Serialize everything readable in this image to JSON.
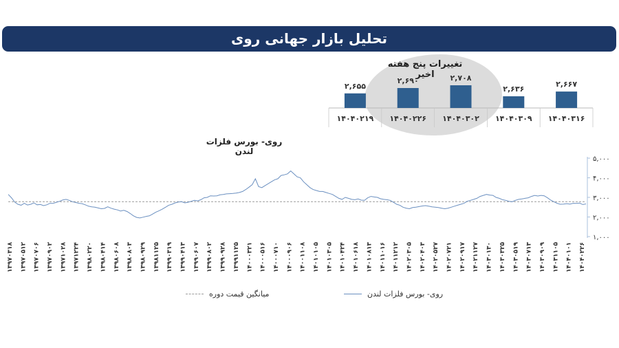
{
  "header": {
    "title": "تحلیل بازار جهانی روی"
  },
  "chart_data": [
    {
      "type": "bar",
      "title": "تغییرات پنج هفته اخیر",
      "categories": [
        "۱۴۰۴۰۲۱۹",
        "۱۴۰۴۰۲۲۶",
        "۱۴۰۴۰۳۰۲",
        "۱۴۰۴۰۳۰۹",
        "۱۴۰۴۰۳۱۶"
      ],
      "values": [
        2655,
        2690,
        2708,
        2636,
        2667
      ],
      "value_labels": [
        "۲,۶۵۵",
        "۲,۶۹۰",
        "۲,۷۰۸",
        "۲,۶۳۶",
        "۲,۶۶۷"
      ],
      "bar_color": "#2f5f8f"
    },
    {
      "type": "line",
      "title": "روی- بورس فلزات لندن",
      "ylim": [
        1000,
        5000
      ],
      "y_ticks": [
        1000,
        2000,
        3000,
        4000,
        5000
      ],
      "y_tick_labels": [
        "۱,۰۰۰",
        "۲,۰۰۰",
        "۳,۰۰۰",
        "۴,۰۰۰",
        "۵,۰۰۰"
      ],
      "x_tick_labels": [
        "۱۳۹۷۰۳۱۸",
        "۱۳۹۷۰۵۱۲",
        "۱۳۹۷۰۷۰۶",
        "۱۳۹۷۰۹۰۲",
        "۱۳۹۷۱۰۲۸",
        "۱۳۹۷۱۲۲۴",
        "۱۳۹۸۰۲۲۰",
        "۱۳۹۸۰۴۱۴",
        "۱۳۹۸۰۶۰۸",
        "۱۳۹۸۰۸۰۳",
        "۱۳۹۸۰۹۲۹",
        "۱۳۹۸۱۱۲۵",
        "۱۳۹۹۰۳۱۹",
        "۱۳۹۹۰۴۱۳",
        "۱۳۹۹۰۶۰۷",
        "۱۳۹۹۰۸۰۲",
        "۱۳۹۹۰۹۲۸",
        "۱۳۹۹۱۱۲۵",
        "۱۴۰۰۰۳۲۱",
        "۱۴۰۰۰۵۱۶",
        "۱۴۰۰۰۷۱۰",
        "۱۴۰۰۰۹۰۶",
        "۱۴۰۰۱۱۰۸",
        "۱۴۰۱۰۱۰۵",
        "۱۴۰۱۰۳۰۵",
        "۱۴۰۱۰۴۲۴",
        "۱۴۰۱۰۶۱۸",
        "۱۴۰۱۰۸۱۳",
        "۱۴۰۱۱۰۱۶",
        "۱۴۰۱۱۲۱۲",
        "۱۴۰۲۰۳۰۵",
        "۱۴۰۲۰۴۰۳",
        "۱۴۰۲۰۵۲۷",
        "۱۴۰۲۰۷۲۱",
        "۱۴۰۲۰۹۱۷",
        "۱۴۰۲۱۱۲۷",
        "۱۴۰۳۰۱۳۰",
        "۱۴۰۳۰۳۲۵",
        "۱۴۰۳۰۵۱۹",
        "۱۴۰۳۰۷۱۳",
        "۱۴۰۳۰۹۰۹",
        "۱۴۰۳۱۱۰۵",
        "۱۴۰۴۰۱۰۱",
        "۱۴۰۴۰۲۲۶"
      ],
      "series": [
        {
          "name": "روی- بورس فلزات لندن",
          "color": "#6a8fc0",
          "values": [
            3150,
            2980,
            2760,
            2650,
            2600,
            2700,
            2610,
            2650,
            2720,
            2620,
            2640,
            2580,
            2620,
            2700,
            2690,
            2750,
            2800,
            2870,
            2900,
            2850,
            2780,
            2740,
            2700,
            2680,
            2620,
            2550,
            2520,
            2500,
            2460,
            2420,
            2440,
            2520,
            2450,
            2400,
            2360,
            2300,
            2340,
            2280,
            2180,
            2060,
            1980,
            1950,
            1990,
            2030,
            2060,
            2150,
            2250,
            2320,
            2400,
            2500,
            2600,
            2650,
            2720,
            2760,
            2780,
            2720,
            2750,
            2800,
            2850,
            2820,
            2880,
            2980,
            3000,
            3080,
            3070,
            3080,
            3130,
            3150,
            3180,
            3190,
            3200,
            3220,
            3250,
            3300,
            3400,
            3520,
            3650,
            3950,
            3550,
            3500,
            3600,
            3700,
            3800,
            3900,
            3950,
            4120,
            4150,
            4200,
            4350,
            4200,
            4050,
            4000,
            3800,
            3650,
            3500,
            3400,
            3350,
            3300,
            3300,
            3250,
            3200,
            3150,
            3050,
            2950,
            2900,
            3000,
            2950,
            2900,
            2880,
            2920,
            2860,
            2850,
            2980,
            3050,
            3020,
            3000,
            2930,
            2900,
            2880,
            2850,
            2750,
            2650,
            2600,
            2500,
            2450,
            2420,
            2480,
            2500,
            2530,
            2560,
            2580,
            2550,
            2520,
            2500,
            2480,
            2450,
            2420,
            2450,
            2500,
            2550,
            2600,
            2650,
            2700,
            2800,
            2850,
            2900,
            2950,
            3050,
            3100,
            3150,
            3120,
            3100,
            3000,
            2950,
            2880,
            2850,
            2800,
            2780,
            2850,
            2900,
            2920,
            2950,
            2980,
            3050,
            3100,
            3070,
            3100,
            3080,
            2980,
            2860,
            2780,
            2700,
            2650,
            2660,
            2680,
            2660,
            2700,
            2690,
            2708,
            2636,
            2667
          ]
        }
      ],
      "average": {
        "name": "میانگین قیمت دوره",
        "value": 2780,
        "color": "#9a9a9a"
      },
      "legend": [
        "روی- بورس فلزات لندن",
        "میانگین قیمت دوره"
      ],
      "legend_position": "bottom"
    }
  ]
}
